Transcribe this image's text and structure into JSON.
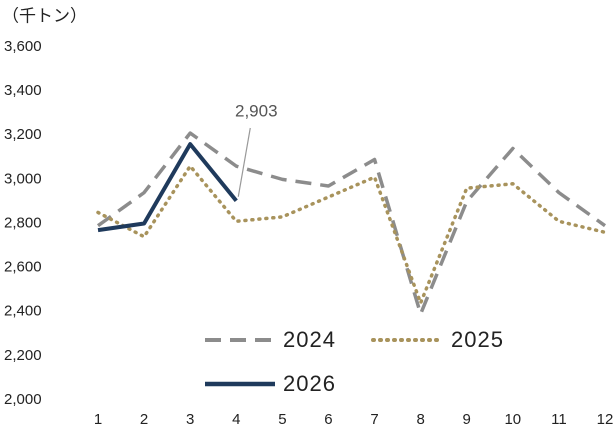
{
  "chart_data": {
    "type": "line",
    "unit_label": "（千トン）",
    "categories": [
      "1",
      "2",
      "3",
      "4",
      "5",
      "6",
      "7",
      "8",
      "9",
      "10",
      "11",
      "12"
    ],
    "series": [
      {
        "name": "2024",
        "color": "#8c8c8c",
        "style": "dashed",
        "values": [
          2790,
          2940,
          3210,
          3060,
          3000,
          2970,
          3090,
          2390,
          2900,
          3140,
          2940,
          2790
        ]
      },
      {
        "name": "2025",
        "color": "#a8935c",
        "style": "dotted",
        "values": [
          2850,
          2740,
          3060,
          2810,
          2830,
          2920,
          3010,
          2440,
          2960,
          2980,
          2810,
          2760
        ]
      },
      {
        "name": "2026",
        "color": "#1f3a5c",
        "style": "solid",
        "values": [
          2770,
          2800,
          3160,
          2903,
          null,
          null,
          null,
          null,
          null,
          null,
          null,
          null
        ],
        "value_labels": [
          null,
          null,
          null,
          "2,903",
          null,
          null,
          null,
          null,
          null,
          null,
          null,
          null
        ]
      }
    ],
    "ylim": [
      2000,
      3600
    ],
    "yticks": [
      {
        "value": 2000,
        "label": "2,000"
      },
      {
        "value": 2200,
        "label": "2,200"
      },
      {
        "value": 2400,
        "label": "2,400"
      },
      {
        "value": 2600,
        "label": "2,600"
      },
      {
        "value": 2800,
        "label": "2,800"
      },
      {
        "value": 3000,
        "label": "3,000"
      },
      {
        "value": 3200,
        "label": "3,200"
      },
      {
        "value": 3400,
        "label": "3,400"
      },
      {
        "value": 3600,
        "label": "3,600"
      }
    ],
    "grid": false
  }
}
